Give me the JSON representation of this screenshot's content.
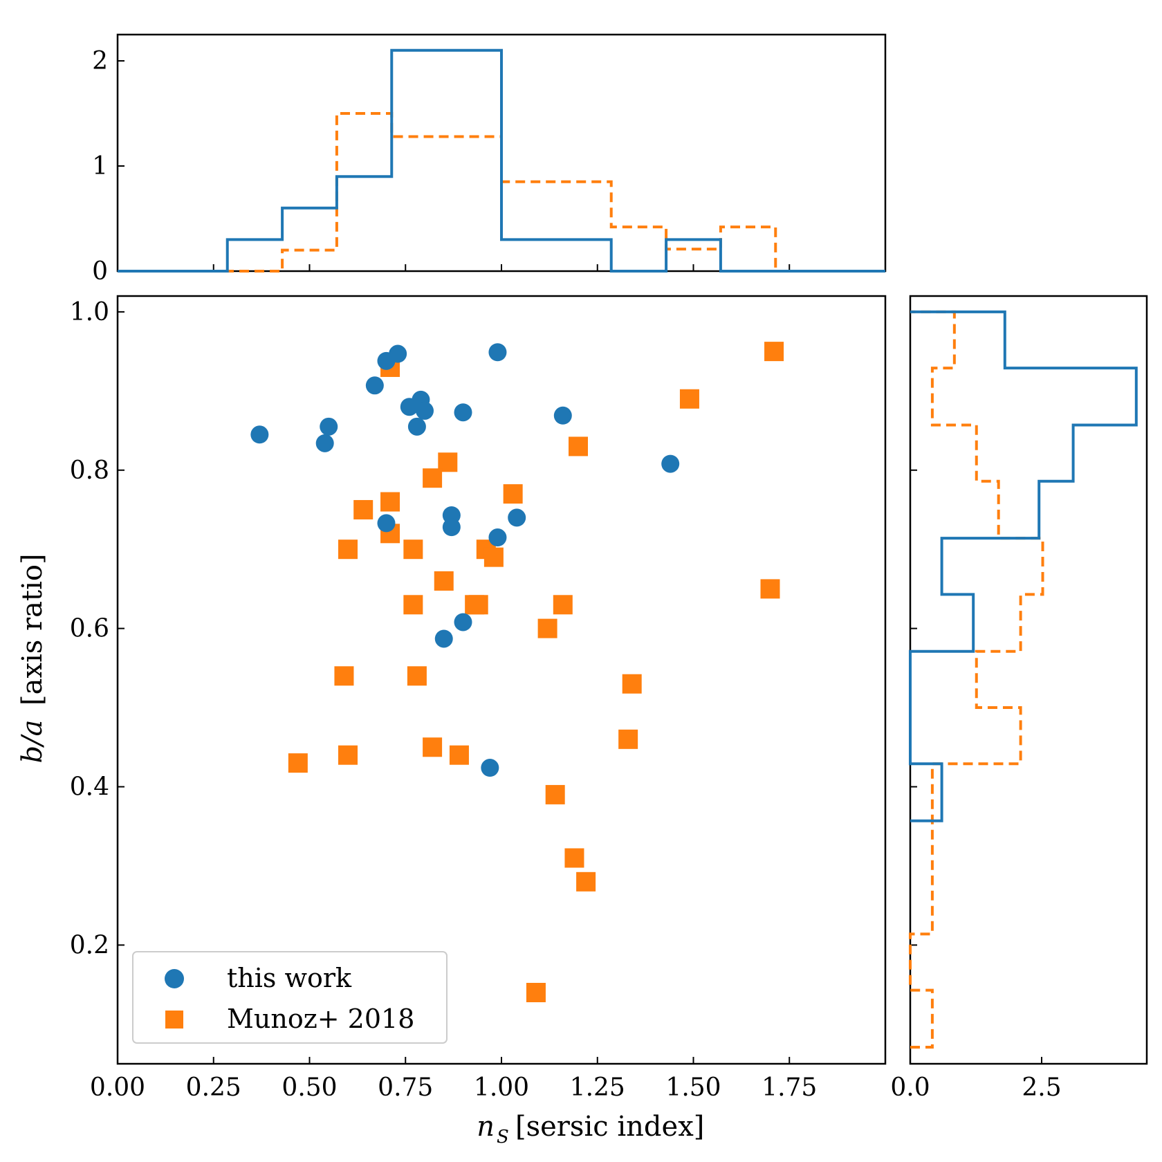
{
  "chart_data": {
    "type": "scatter",
    "xlabel": "n_S [sersic index]",
    "xlabel_math": "n",
    "xlabel_sub": "S",
    "xlabel_text": "[sersic index]",
    "ylabel": "b/a [axis ratio]",
    "ylabel_math": "b/a",
    "ylabel_text": "[axis ratio]",
    "xlim": [
      0,
      2.0
    ],
    "ylim": [
      0.05,
      1.02
    ],
    "xticks": [
      "0.00",
      "0.25",
      "0.50",
      "0.75",
      "1.00",
      "1.25",
      "1.50",
      "1.75"
    ],
    "yticks": [
      "0.2",
      "0.4",
      "0.6",
      "0.8",
      "1.0"
    ],
    "legend_position": "lower-left",
    "colors": {
      "this_work": "#1f77b4",
      "munoz": "#ff7f0e"
    },
    "series": [
      {
        "name": "this work",
        "marker": "circle",
        "x": [
          0.37,
          0.54,
          0.55,
          0.67,
          0.7,
          0.73,
          0.76,
          0.78,
          0.79,
          0.8,
          0.9,
          0.99,
          1.16,
          1.44,
          0.7,
          0.87,
          0.87,
          0.99,
          1.04,
          0.85,
          0.9,
          0.97
        ],
        "y": [
          0.845,
          0.834,
          0.855,
          0.907,
          0.938,
          0.947,
          0.88,
          0.855,
          0.889,
          0.875,
          0.873,
          0.949,
          0.869,
          0.808,
          0.733,
          0.743,
          0.728,
          0.715,
          0.74,
          0.587,
          0.608,
          0.424
        ]
      },
      {
        "name": "Munoz+ 2018",
        "marker": "square",
        "x": [
          0.71,
          0.86,
          0.82,
          0.64,
          0.71,
          1.03,
          0.71,
          0.6,
          0.77,
          0.96,
          0.98,
          0.85,
          0.77,
          0.93,
          0.94,
          1.16,
          1.12,
          0.59,
          0.78,
          1.34,
          1.33,
          0.47,
          0.6,
          0.82,
          0.89,
          1.14,
          1.19,
          1.22,
          1.09,
          1.71,
          1.49,
          1.2,
          1.7
        ],
        "y": [
          0.93,
          0.81,
          0.79,
          0.75,
          0.76,
          0.77,
          0.72,
          0.7,
          0.7,
          0.7,
          0.69,
          0.66,
          0.63,
          0.63,
          0.63,
          0.63,
          0.6,
          0.54,
          0.54,
          0.53,
          0.46,
          0.43,
          0.44,
          0.45,
          0.44,
          0.39,
          0.31,
          0.28,
          0.14,
          0.95,
          0.89,
          0.83,
          0.65
        ]
      }
    ],
    "top_histogram": {
      "xlim": [
        0,
        2.0
      ],
      "ylim": [
        0,
        2.25
      ],
      "yticks": [
        "0",
        "1",
        "2"
      ],
      "bins": [
        0.286,
        0.429,
        0.571,
        0.714,
        1.0,
        1.286,
        1.429,
        1.571
      ],
      "this_work": [
        0.3,
        0.6,
        0.9,
        2.1,
        0.3,
        0.0,
        0.3
      ],
      "munoz_bins": [
        0.429,
        0.571,
        0.714,
        1.0,
        1.286,
        1.429,
        1.571,
        1.714
      ],
      "munoz": [
        0.2,
        1.5,
        1.28,
        0.85,
        0.42,
        0.21,
        0.42
      ]
    },
    "right_histogram": {
      "xlim": [
        0,
        4.5
      ],
      "xticks": [
        "0.0",
        "2.5"
      ],
      "bins": [
        0.357,
        0.429,
        0.571,
        0.643,
        0.714,
        0.786,
        0.857,
        0.929,
        1.0
      ],
      "this_work": [
        0.6,
        0.0,
        1.2,
        0.6,
        2.45,
        3.1,
        4.3,
        1.8
      ],
      "munoz_bins": [
        0.071,
        0.143,
        0.214,
        0.429,
        0.5,
        0.571,
        0.643,
        0.714,
        0.786,
        0.857,
        0.929,
        1.0
      ],
      "munoz": [
        0.42,
        0.0,
        0.42,
        2.1,
        1.26,
        2.1,
        2.52,
        1.68,
        1.26,
        0.42,
        0.84
      ]
    }
  },
  "legend": {
    "this_work": "this work",
    "munoz": "Munoz+ 2018"
  }
}
